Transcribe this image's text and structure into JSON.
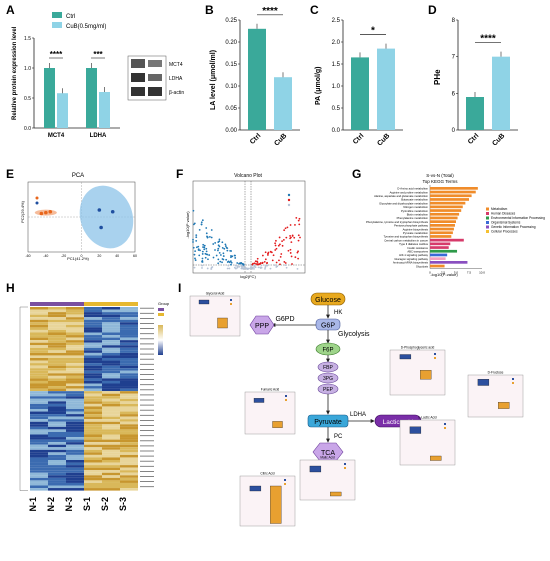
{
  "panels": {
    "A": {
      "letter": "A",
      "ylabel": "Relative protein expression level",
      "legend": [
        "Ctrl",
        "CuB(0.5mg/ml)"
      ],
      "blot_labels": [
        "MCT4",
        "LDHA",
        "β-actin"
      ],
      "sig": [
        "****",
        "***"
      ]
    },
    "B": {
      "letter": "B",
      "ylabel": "LA level (μmol/ml)",
      "sig": "****"
    },
    "C": {
      "letter": "C",
      "ylabel": "PA (μmol/g)",
      "sig": "*"
    },
    "D": {
      "letter": "D",
      "ylabel": "PHe",
      "sig": "****"
    },
    "E": {
      "letter": "E",
      "title": "PCA",
      "xlabel": "PC1(41.2%)",
      "ylabel": "PC2(29.4%)"
    },
    "F": {
      "letter": "F",
      "title": "Volcano Plot",
      "xlabel": "log2(FC)",
      "ylabel": "-log10(P value)",
      "pline": "p-value=0.05"
    },
    "G": {
      "letter": "G",
      "title1": "S-vs-N (Total)",
      "title2": "Top KEGG Terms",
      "xlabel": "-log10(P-value)"
    },
    "H": {
      "letter": "H",
      "legend_title": "Group",
      "cols": [
        "N-1",
        "N-2",
        "N-3",
        "S-1",
        "S-2",
        "S-3"
      ]
    },
    "I": {
      "letter": "I",
      "nodes": {
        "glucose": "Glucose",
        "hk": "HK",
        "g6p": "G6P",
        "g6pd": "G6PD",
        "ppp": "PPP",
        "glycolysis": "Glycolysis",
        "f6p": "F6P",
        "fbp": "FBP",
        "pg3": "3PG",
        "pep": "PEP",
        "ldha": "LDHA",
        "pyruvate": "Pyruvate",
        "lactic": "Lactic acid",
        "pc": "PC",
        "tca": "TCA"
      },
      "box_titles": [
        "Glycerol Acid",
        "Fumaric Acid",
        "Malic Acid",
        "Citric Acid",
        "D-Phosphoglyceric acid",
        "D-Fructose",
        "L-Lactic Acid"
      ]
    }
  },
  "chart_data": [
    {
      "type": "bar",
      "panel": "A",
      "categories": [
        "MCT4",
        "LDHA"
      ],
      "series": [
        {
          "name": "Ctrl",
          "values": [
            1.0,
            1.0
          ]
        },
        {
          "name": "CuB(0.5mg/ml)",
          "values": [
            0.58,
            0.6
          ]
        }
      ],
      "ylim": [
        0,
        1.5
      ],
      "yticks": [
        "0.0",
        "0.5",
        "1.0",
        "1.5"
      ]
    },
    {
      "type": "bar",
      "panel": "B",
      "categories": [
        "Ctrl",
        "CuB"
      ],
      "values": [
        0.23,
        0.12
      ],
      "ylim": [
        0,
        0.25
      ],
      "yticks": [
        "0.00",
        "0.05",
        "0.10",
        "0.15",
        "0.20",
        "0.25"
      ]
    },
    {
      "type": "bar",
      "panel": "C",
      "categories": [
        "Ctrl",
        "CuB"
      ],
      "values": [
        1.65,
        1.85
      ],
      "ylim": [
        0,
        2.5
      ],
      "yticks": [
        "0.0",
        "0.5",
        "1.0",
        "1.5",
        "2.0",
        "2.5"
      ]
    },
    {
      "type": "bar",
      "panel": "D",
      "categories": [
        "Ctrl",
        "CuB"
      ],
      "values": [
        5.9,
        7.0
      ],
      "ylim": [
        0,
        8
      ],
      "yticks": [
        "0",
        "6",
        "7",
        "8"
      ]
    },
    {
      "type": "scatter",
      "panel": "E",
      "xlim": [
        -60,
        60
      ],
      "ylim": [
        -40,
        40
      ],
      "xticks": [
        "-60",
        "-40",
        "-20",
        "0",
        "20",
        "40",
        "60"
      ],
      "series": [
        {
          "name": "N",
          "points": [
            [
              -45,
              4
            ],
            [
              -40,
              5
            ],
            [
              -35,
              6
            ]
          ]
        },
        {
          "name": "S",
          "points": [
            [
              20,
              8
            ],
            [
              35,
              6
            ],
            [
              22,
              -12
            ]
          ]
        }
      ]
    },
    {
      "type": "bar",
      "panel": "G",
      "categories": [
        "D-Amino acid metabolism",
        "Arginine and proline metabolism",
        "Alanine, aspartate and glutamate metabolism",
        "Butanoate metabolism",
        "Glyoxylate and dicarboxylate metabolism",
        "Nitrogen metabolism",
        "Pyrimidine metabolism",
        "Biotin metabolism",
        "Phenylalanine metabolism",
        "Phenylalanine, tyrosine and tryptophan biosynthesis",
        "Pentose phosphate pathway",
        "Arginine biosynthesis",
        "Pyruvate metabolism",
        "Tyrosine and tryptophan biosynthesis",
        "Central carbon metabolism in cancer",
        "Type II diabetes mellitus",
        "Insulin resistance",
        "ABC transporters",
        "HIF-1 signaling pathway",
        "Glucagon signaling pathway",
        "Aminoacyl-tRNA biosynthesis",
        "Glycolysis"
      ],
      "values": [
        9.2,
        8.8,
        8.0,
        7.5,
        6.8,
        6.3,
        6.0,
        5.6,
        5.3,
        5.0,
        4.8,
        4.6,
        4.4,
        4.1,
        6.5,
        3.9,
        3.6,
        5.2,
        3.3,
        3.0,
        7.2,
        2.8
      ],
      "classes": [
        "Metabolism",
        "Human Diseases",
        "Environmental Information Processing",
        "Organismal Systems",
        "Genetic Information Processing",
        "Cellular Processes"
      ],
      "xticks": [
        "0",
        "2.5",
        "5.0",
        "7.5",
        "10.0"
      ]
    }
  ]
}
